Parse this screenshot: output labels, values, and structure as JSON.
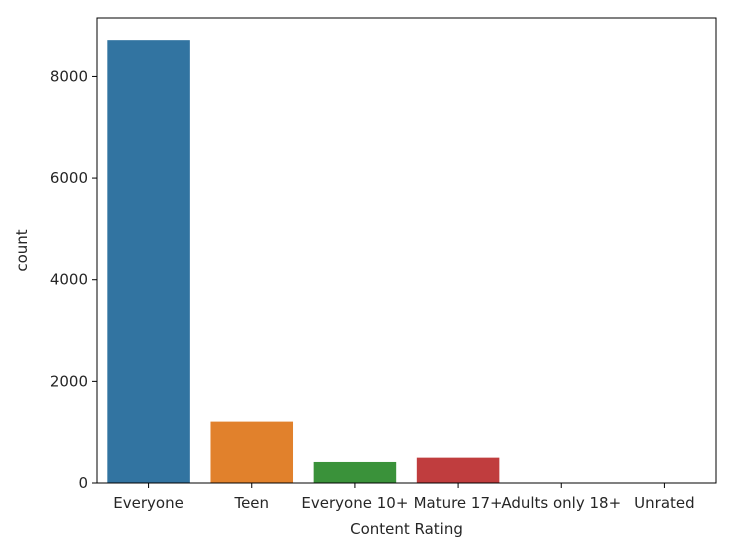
{
  "chart_data": {
    "type": "bar",
    "xlabel": "Content Rating",
    "ylabel": "count",
    "categories": [
      "Everyone",
      "Teen",
      "Everyone 10+",
      "Mature 17+",
      "Adults only 18+",
      "Unrated"
    ],
    "values": [
      8714,
      1208,
      414,
      499,
      3,
      2
    ],
    "colors": [
      "#3274a1",
      "#e1812c",
      "#3a923a",
      "#c03d3e",
      "#9372b2",
      "#845b53"
    ],
    "yticks": [
      0,
      2000,
      4000,
      6000,
      8000
    ],
    "ylim": [
      0,
      9150
    ],
    "grid": false,
    "legend": "none"
  }
}
